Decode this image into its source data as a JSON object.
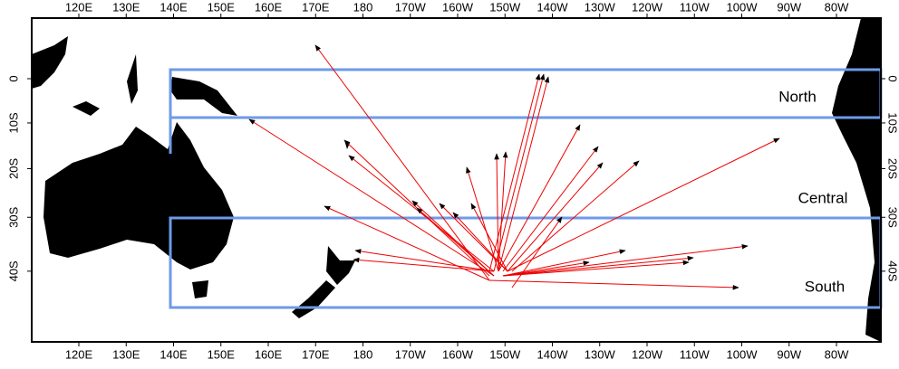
{
  "map": {
    "x_ticks": [
      {
        "value": 120,
        "label": "120E"
      },
      {
        "value": 130,
        "label": "130E"
      },
      {
        "value": 140,
        "label": "140E"
      },
      {
        "value": 150,
        "label": "150E"
      },
      {
        "value": 160,
        "label": "160E"
      },
      {
        "value": 170,
        "label": "170E"
      },
      {
        "value": 180,
        "label": "180"
      },
      {
        "value": 190,
        "label": "170W"
      },
      {
        "value": 200,
        "label": "160W"
      },
      {
        "value": 210,
        "label": "150W"
      },
      {
        "value": 220,
        "label": "140W"
      },
      {
        "value": 230,
        "label": "130W"
      },
      {
        "value": 240,
        "label": "120W"
      },
      {
        "value": 250,
        "label": "110W"
      },
      {
        "value": 260,
        "label": "100W"
      },
      {
        "value": 270,
        "label": "90W"
      },
      {
        "value": 280,
        "label": "80W"
      }
    ],
    "y_ticks": [
      {
        "value": 0,
        "label": "0"
      },
      {
        "value": -10,
        "label": "10S"
      },
      {
        "value": -20,
        "label": "20S"
      },
      {
        "value": -30,
        "label": "30S"
      },
      {
        "value": -40,
        "label": "40S"
      }
    ],
    "regions": {
      "north": "North",
      "central": "Central",
      "south": "South"
    }
  }
}
